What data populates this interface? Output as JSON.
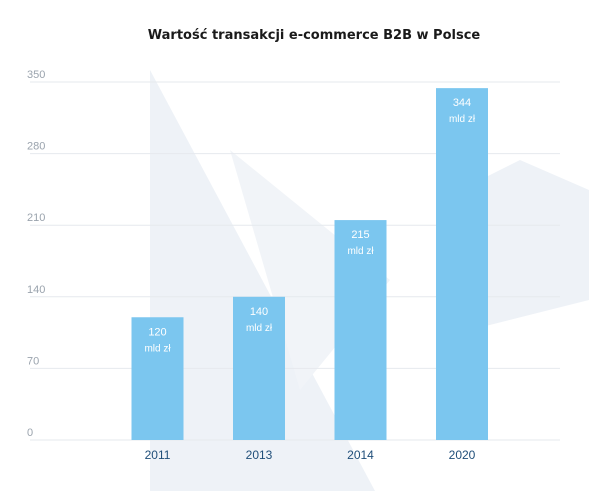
{
  "chart_data": {
    "type": "bar",
    "title": "Wartość transakcji e-commerce B2B w Polsce",
    "xlabel": "",
    "ylabel": "",
    "categories": [
      "2011",
      "2013",
      "2014",
      "2020"
    ],
    "values": [
      120,
      140,
      215,
      344
    ],
    "data_labels": [
      {
        "value": "120",
        "unit": "mld zł"
      },
      {
        "value": "140",
        "unit": "mld zł"
      },
      {
        "value": "215",
        "unit": "mld zł"
      },
      {
        "value": "344",
        "unit": "mld zł"
      }
    ],
    "ylim": [
      0,
      350
    ],
    "yticks": [
      "0",
      "70",
      "140",
      "210",
      "280",
      "350"
    ],
    "grid": true,
    "legend": "none",
    "colors": {
      "bar": "#7bc6ef",
      "grid": "#e6e9ee",
      "background_shape": "#eef2f7",
      "xtick": "#1f4e79",
      "ytick": "#9aa3ad",
      "title": "#1a1a1a"
    }
  }
}
